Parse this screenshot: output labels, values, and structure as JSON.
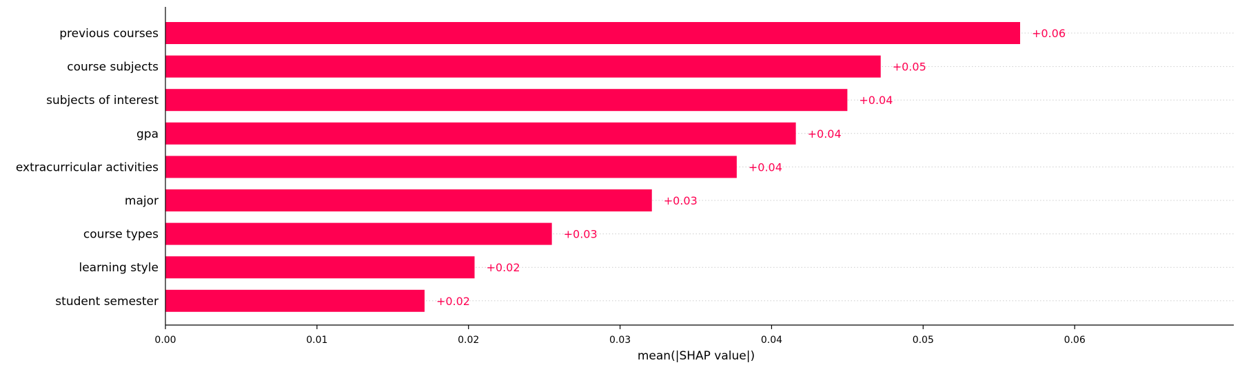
{
  "chart_data": {
    "type": "bar",
    "orientation": "horizontal",
    "title": "",
    "xlabel": "mean(|SHAP value|)",
    "ylabel": "",
    "xlim": [
      0.0,
      0.0623
    ],
    "xticks": [
      0.0,
      0.01,
      0.02,
      0.03,
      0.04,
      0.05,
      0.06
    ],
    "xtick_labels": [
      "0.00",
      "0.01",
      "0.02",
      "0.03",
      "0.04",
      "0.05",
      "0.06"
    ],
    "grid": "horizontal dotted lines per category",
    "legend": "none",
    "color": "#ff0051",
    "categories": [
      "previous courses",
      "course subjects",
      "subjects of interest",
      "gpa",
      "extracurricular activities",
      "major",
      "course types",
      "learning style",
      "student semester"
    ],
    "values": [
      0.0564,
      0.0472,
      0.045,
      0.0416,
      0.0377,
      0.0321,
      0.0255,
      0.0204,
      0.0171
    ],
    "data_labels": [
      "+0.06",
      "+0.05",
      "+0.04",
      "+0.04",
      "+0.04",
      "+0.03",
      "+0.03",
      "+0.02",
      "+0.02"
    ]
  }
}
